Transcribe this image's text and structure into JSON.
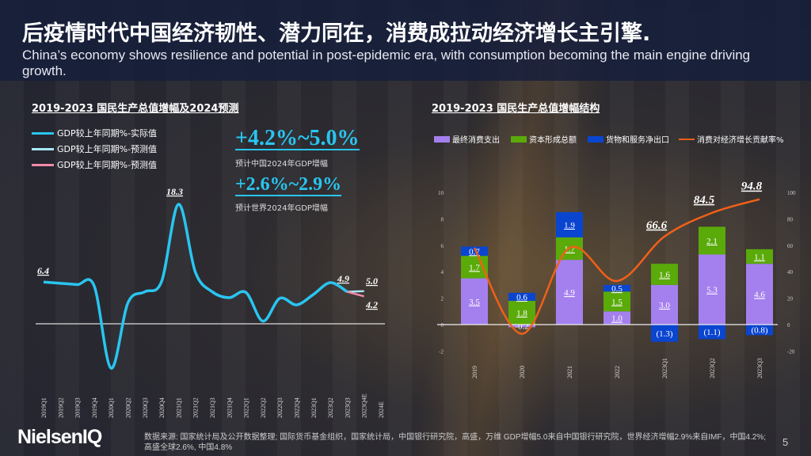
{
  "header": {
    "title": "后疫情时代中国经济韧性、潜力同在，消费成拉动经济增长主引擎.",
    "subtitle": "China’s economy shows resilience and potential in post-epidemic era, with consumption becoming the main engine driving growth."
  },
  "highlights": [
    {
      "value": "+4.2%~5.0%",
      "label": "预计中国2024年GDP增幅"
    },
    {
      "value": "+2.6%~2.9%",
      "label": "预计世界2024年GDP增幅"
    }
  ],
  "footer": {
    "logo": "NielsenIQ",
    "source": "数据来源: 国家统计局及公开数据整理; 国际货币基金组织，国家统计局，中国银行研究院，高盛，万维 GDP增幅5.0来自中国银行研究院，世界经济增幅2.9%来自IMF，中国4.2%; 高盛全球2.6%, 中国4.8%",
    "page": "5"
  },
  "chart_data": [
    {
      "type": "line",
      "title": "2019-2023 国民生产总值增幅及2024预测",
      "categories": [
        "2019Q1",
        "2019Q2",
        "2019Q3",
        "2019Q4",
        "2020Q1",
        "2020Q2",
        "2020Q3",
        "2020Q4",
        "2021Q1",
        "2021Q2",
        "2021Q3",
        "2021Q4",
        "2022Q1",
        "2022Q2",
        "2022Q3",
        "2022Q4",
        "2023Q1",
        "2023Q2",
        "2023Q3",
        "2023Q4E",
        "2024E"
      ],
      "series": [
        {
          "name": "GDP较上年同期%-实际值",
          "color": "#29c5f0",
          "values": [
            6.4,
            6.2,
            6.0,
            5.8,
            -6.8,
            3.2,
            4.9,
            6.5,
            18.3,
            7.9,
            4.9,
            4.0,
            4.8,
            0.4,
            3.9,
            2.9,
            4.5,
            6.3,
            4.9,
            null,
            null
          ]
        },
        {
          "name": "GDP较上年同期%-预测值",
          "color": "#a8e6f8",
          "values": [
            null,
            null,
            null,
            null,
            null,
            null,
            null,
            null,
            null,
            null,
            null,
            null,
            null,
            null,
            null,
            null,
            null,
            null,
            4.9,
            5.0,
            null
          ]
        },
        {
          "name": "GDP较上年同期%-预测值",
          "color": "#f08aa8",
          "values": [
            null,
            null,
            null,
            null,
            null,
            null,
            null,
            null,
            null,
            null,
            null,
            null,
            null,
            null,
            null,
            null,
            null,
            null,
            4.9,
            4.2,
            null
          ]
        }
      ],
      "data_labels": [
        {
          "x": "2019Q1",
          "text": "6.4"
        },
        {
          "x": "2021Q1",
          "text": "18.3"
        },
        {
          "x": "2023Q3",
          "text": "4.9"
        },
        {
          "x": "2023Q4E",
          "text": "5.0"
        },
        {
          "x": "2023Q4E",
          "text": "4.2"
        }
      ],
      "ylim": [
        -8,
        20
      ],
      "legend": "top-left"
    },
    {
      "type": "bar",
      "title": "2019-2023 国民生产总值增幅结构",
      "stacked": true,
      "categories": [
        "2019",
        "2020",
        "2021",
        "2022",
        "2023Q1",
        "2023Q2",
        "2023Q3"
      ],
      "series": [
        {
          "name": "最终消费支出",
          "color": "#a480ee",
          "values": [
            3.5,
            -0.2,
            4.9,
            1.0,
            3.0,
            5.3,
            4.6
          ],
          "labels": [
            "3.5",
            "-0.2",
            "4.9",
            "1.0",
            "3.0",
            "5.3",
            "4.6"
          ]
        },
        {
          "name": "资本形成总额",
          "color": "#5aaa0a",
          "values": [
            1.7,
            1.8,
            1.7,
            1.5,
            1.6,
            2.1,
            1.1
          ],
          "labels": [
            "1.7",
            "1.8",
            "1.7",
            "1.5",
            "1.6",
            "2.1",
            "1.1"
          ]
        },
        {
          "name": "货物和服务净出口",
          "color": "#0a45d0",
          "values": [
            0.7,
            0.6,
            1.9,
            0.5,
            -1.3,
            -1.1,
            -0.8
          ],
          "labels": [
            "0.7",
            "0.6",
            "1.9",
            "0.5",
            "(1.3)",
            "(1.1)",
            "(0.8)"
          ]
        },
        {
          "name": "消费对经济增长贡献率%",
          "color": "#f06018",
          "type": "line",
          "axis": "right",
          "values": [
            58,
            -7,
            58,
            33,
            66.6,
            84.5,
            94.8
          ],
          "labels": [
            "",
            "",
            "",
            "",
            "66.6",
            "84.5",
            "94.8"
          ]
        }
      ],
      "yticks": [
        "-2",
        "0",
        "2",
        "4",
        "6",
        "8",
        "10"
      ],
      "y2ticks": [
        "-20",
        "0",
        "20",
        "40",
        "60",
        "80",
        "100"
      ],
      "ylim": [
        -2,
        10
      ],
      "y2lim": [
        -20,
        100
      ],
      "legend": "top"
    }
  ]
}
